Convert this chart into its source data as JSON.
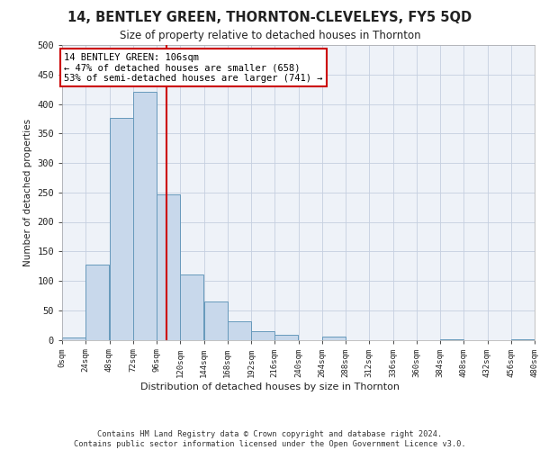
{
  "title": "14, BENTLEY GREEN, THORNTON-CLEVELEYS, FY5 5QD",
  "subtitle": "Size of property relative to detached houses in Thornton",
  "xlabel": "Distribution of detached houses by size in Thornton",
  "ylabel": "Number of detached properties",
  "bar_color": "#c8d8eb",
  "bar_edge_color": "#6699bb",
  "grid_color": "#c5cfe0",
  "background_color": "#eef2f8",
  "bins": [
    0,
    24,
    48,
    72,
    96,
    120,
    144,
    168,
    192,
    216,
    240,
    264,
    288,
    312,
    336,
    360,
    384,
    408,
    432,
    456,
    480
  ],
  "values": [
    4,
    128,
    377,
    420,
    246,
    110,
    65,
    31,
    14,
    8,
    0,
    5,
    0,
    0,
    0,
    0,
    1,
    0,
    0,
    1
  ],
  "property_size": 106,
  "vline_color": "#cc0000",
  "annotation_text": "14 BENTLEY GREEN: 106sqm\n← 47% of detached houses are smaller (658)\n53% of semi-detached houses are larger (741) →",
  "annotation_box_color": "#ffffff",
  "annotation_box_edge": "#cc0000",
  "ylim": [
    0,
    500
  ],
  "yticks": [
    0,
    50,
    100,
    150,
    200,
    250,
    300,
    350,
    400,
    450,
    500
  ],
  "footer_text": "Contains HM Land Registry data © Crown copyright and database right 2024.\nContains public sector information licensed under the Open Government Licence v3.0.",
  "tick_labels": [
    "0sqm",
    "24sqm",
    "48sqm",
    "72sqm",
    "96sqm",
    "120sqm",
    "144sqm",
    "168sqm",
    "192sqm",
    "216sqm",
    "240sqm",
    "264sqm",
    "288sqm",
    "312sqm",
    "336sqm",
    "360sqm",
    "384sqm",
    "408sqm",
    "432sqm",
    "456sqm",
    "480sqm"
  ]
}
